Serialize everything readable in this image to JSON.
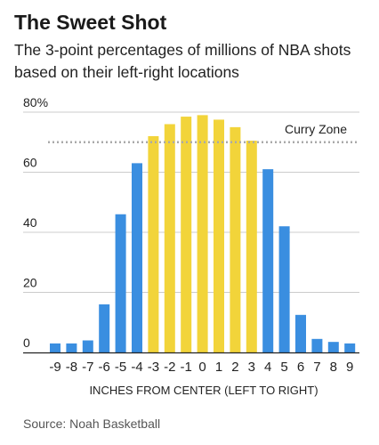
{
  "header": {
    "title": "The Sweet Shot",
    "subtitle": "The 3-point percentages of millions of NBA shots based on their left-right locations"
  },
  "source": "Source: Noah Basketball",
  "colors": {
    "blue": "#3a8ee0",
    "yellow": "#f2d43a",
    "gridline": "#cccccc",
    "reference_line": "#aaaaaa",
    "axis": "#222222"
  },
  "chart_data": {
    "type": "bar",
    "title": "The Sweet Shot",
    "xlabel": "INCHES FROM CENTER (LEFT TO RIGHT)",
    "ylabel": "",
    "ylim": [
      0,
      80
    ],
    "yticks": [
      0,
      20,
      40,
      60,
      80
    ],
    "ytick_labels": [
      "0",
      "20",
      "40",
      "60",
      "80%"
    ],
    "grid": true,
    "categories": [
      "-9",
      "-8",
      "-7",
      "-6",
      "-5",
      "-4",
      "-3",
      "-2",
      "-1",
      "0",
      "1",
      "2",
      "3",
      "4",
      "5",
      "6",
      "7",
      "8",
      "9"
    ],
    "values": [
      3,
      3,
      4,
      16,
      46,
      63,
      72,
      76,
      78.5,
      79,
      77.5,
      75,
      70.5,
      61,
      42,
      12.5,
      4.5,
      3.5,
      3
    ],
    "bar_colors": [
      "blue",
      "blue",
      "blue",
      "blue",
      "blue",
      "blue",
      "yellow",
      "yellow",
      "yellow",
      "yellow",
      "yellow",
      "yellow",
      "yellow",
      "blue",
      "blue",
      "blue",
      "blue",
      "blue",
      "blue"
    ],
    "annotations": [
      {
        "text": "Curry Zone",
        "y": 70,
        "style": "dotted-line"
      }
    ]
  }
}
